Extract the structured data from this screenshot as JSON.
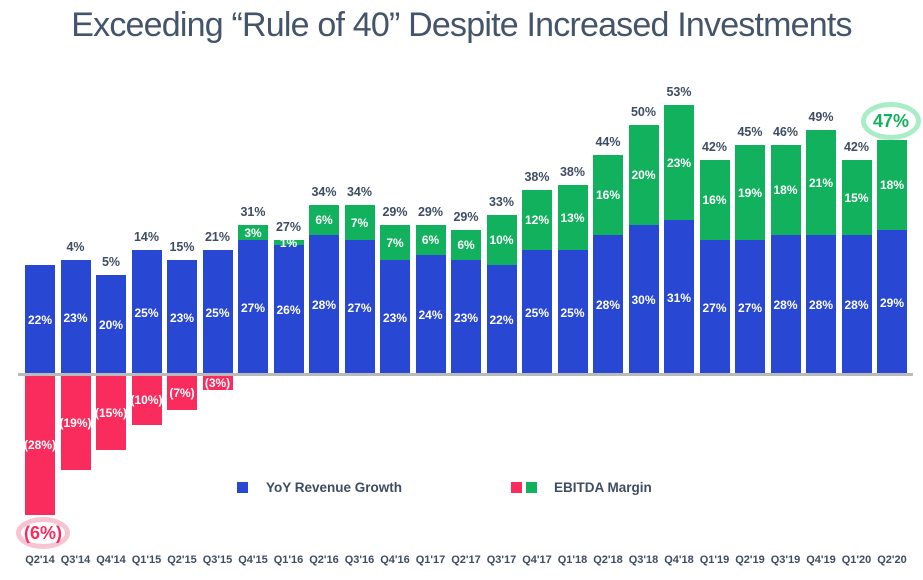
{
  "title": "Exceeding “Rule of 40” Despite Increased Investments",
  "colors": {
    "revenue_blue": "#2847d2",
    "ebitda_green": "#12b15d",
    "ebitda_pink": "#fa2c5e",
    "label_navy": "#3e4d63",
    "title_slate": "#44546a",
    "axis_gray": "#bababa",
    "highlight_ring_pink": "#f9c4d2",
    "highlight_ring_green": "#a9edc6"
  },
  "legend": {
    "revenue": {
      "label": "YoY Revenue Growth"
    },
    "ebitda": {
      "label": "EBITDA Margin"
    }
  },
  "chart_data": {
    "type": "bar",
    "stacked": true,
    "grid": false,
    "y_axis_visible": false,
    "legend_position": "bottom",
    "categories": [
      "Q2'14",
      "Q3'14",
      "Q4'14",
      "Q1'15",
      "Q2'15",
      "Q3'15",
      "Q4'15",
      "Q1'16",
      "Q2'16",
      "Q3'16",
      "Q4'16",
      "Q1'17",
      "Q2'17",
      "Q3'17",
      "Q4'17",
      "Q1'18",
      "Q2'18",
      "Q3'18",
      "Q4'18",
      "Q1'19",
      "Q2'19",
      "Q3'19",
      "Q4'19",
      "Q1'20",
      "Q2'20"
    ],
    "series": [
      {
        "name": "YoY Revenue Growth",
        "values": [
          22,
          23,
          20,
          25,
          23,
          25,
          27,
          26,
          28,
          27,
          23,
          24,
          23,
          22,
          25,
          25,
          28,
          30,
          31,
          27,
          27,
          28,
          28,
          28,
          29
        ]
      },
      {
        "name": "EBITDA Margin",
        "values": [
          -28,
          -19,
          -15,
          -10,
          -7,
          -3,
          3,
          1,
          6,
          7,
          7,
          6,
          6,
          10,
          12,
          13,
          16,
          20,
          23,
          16,
          19,
          18,
          21,
          15,
          18
        ]
      }
    ],
    "title": "Exceeding “Rule of 40” Despite Increased Investments",
    "bars": [
      {
        "quarter": "Q2'14",
        "revenue": 22,
        "revenue_label": "22%",
        "ebitda": -28,
        "ebitda_label": "(28%)",
        "total_label": ""
      },
      {
        "quarter": "Q3'14",
        "revenue": 23,
        "revenue_label": "23%",
        "ebitda": -19,
        "ebitda_label": "(19%)",
        "total_label": "4%"
      },
      {
        "quarter": "Q4'14",
        "revenue": 20,
        "revenue_label": "20%",
        "ebitda": -15,
        "ebitda_label": "(15%)",
        "total_label": "5%"
      },
      {
        "quarter": "Q1'15",
        "revenue": 25,
        "revenue_label": "25%",
        "ebitda": -10,
        "ebitda_label": "(10%)",
        "total_label": "14%"
      },
      {
        "quarter": "Q2'15",
        "revenue": 23,
        "revenue_label": "23%",
        "ebitda": -7,
        "ebitda_label": "(7%)",
        "total_label": "15%"
      },
      {
        "quarter": "Q3'15",
        "revenue": 25,
        "revenue_label": "25%",
        "ebitda": -3,
        "ebitda_label": "(3%)",
        "total_label": "21%"
      },
      {
        "quarter": "Q4'15",
        "revenue": 27,
        "revenue_label": "27%",
        "ebitda": 3,
        "ebitda_label": "3%",
        "total_label": "31%"
      },
      {
        "quarter": "Q1'16",
        "revenue": 26,
        "revenue_label": "26%",
        "ebitda": 1,
        "ebitda_label": "1%",
        "total_label": "27%"
      },
      {
        "quarter": "Q2'16",
        "revenue": 28,
        "revenue_label": "28%",
        "ebitda": 6,
        "ebitda_label": "6%",
        "total_label": "34%"
      },
      {
        "quarter": "Q3'16",
        "revenue": 27,
        "revenue_label": "27%",
        "ebitda": 7,
        "ebitda_label": "7%",
        "total_label": "34%"
      },
      {
        "quarter": "Q4'16",
        "revenue": 23,
        "revenue_label": "23%",
        "ebitda": 7,
        "ebitda_label": "7%",
        "total_label": "29%"
      },
      {
        "quarter": "Q1'17",
        "revenue": 24,
        "revenue_label": "24%",
        "ebitda": 6,
        "ebitda_label": "6%",
        "total_label": "29%"
      },
      {
        "quarter": "Q2'17",
        "revenue": 23,
        "revenue_label": "23%",
        "ebitda": 6,
        "ebitda_label": "6%",
        "total_label": "29%"
      },
      {
        "quarter": "Q3'17",
        "revenue": 22,
        "revenue_label": "22%",
        "ebitda": 10,
        "ebitda_label": "10%",
        "total_label": "33%"
      },
      {
        "quarter": "Q4'17",
        "revenue": 25,
        "revenue_label": "25%",
        "ebitda": 12,
        "ebitda_label": "12%",
        "total_label": "38%"
      },
      {
        "quarter": "Q1'18",
        "revenue": 25,
        "revenue_label": "25%",
        "ebitda": 13,
        "ebitda_label": "13%",
        "total_label": "38%"
      },
      {
        "quarter": "Q2'18",
        "revenue": 28,
        "revenue_label": "28%",
        "ebitda": 16,
        "ebitda_label": "16%",
        "total_label": "44%"
      },
      {
        "quarter": "Q3'18",
        "revenue": 30,
        "revenue_label": "30%",
        "ebitda": 20,
        "ebitda_label": "20%",
        "total_label": "50%"
      },
      {
        "quarter": "Q4'18",
        "revenue": 31,
        "revenue_label": "31%",
        "ebitda": 23,
        "ebitda_label": "23%",
        "total_label": "53%"
      },
      {
        "quarter": "Q1'19",
        "revenue": 27,
        "revenue_label": "27%",
        "ebitda": 16,
        "ebitda_label": "16%",
        "total_label": "42%"
      },
      {
        "quarter": "Q2'19",
        "revenue": 27,
        "revenue_label": "27%",
        "ebitda": 19,
        "ebitda_label": "19%",
        "total_label": "45%"
      },
      {
        "quarter": "Q3'19",
        "revenue": 28,
        "revenue_label": "28%",
        "ebitda": 18,
        "ebitda_label": "18%",
        "total_label": "46%"
      },
      {
        "quarter": "Q4'19",
        "revenue": 28,
        "revenue_label": "28%",
        "ebitda": 21,
        "ebitda_label": "21%",
        "total_label": "49%"
      },
      {
        "quarter": "Q1'20",
        "revenue": 28,
        "revenue_label": "28%",
        "ebitda": 15,
        "ebitda_label": "15%",
        "total_label": "42%"
      },
      {
        "quarter": "Q2'20",
        "revenue": 29,
        "revenue_label": "29%",
        "ebitda": 18,
        "ebitda_label": "18%",
        "total_label": ""
      }
    ],
    "annotations": {
      "low": {
        "text": "(6%)",
        "meaning": "Rule of 40 total for Q2'14, circled",
        "color": "#fa2c5e"
      },
      "high": {
        "text": "47%",
        "meaning": "Rule of 40 total for Q2'20, circled",
        "color": "#12b15d"
      }
    }
  }
}
